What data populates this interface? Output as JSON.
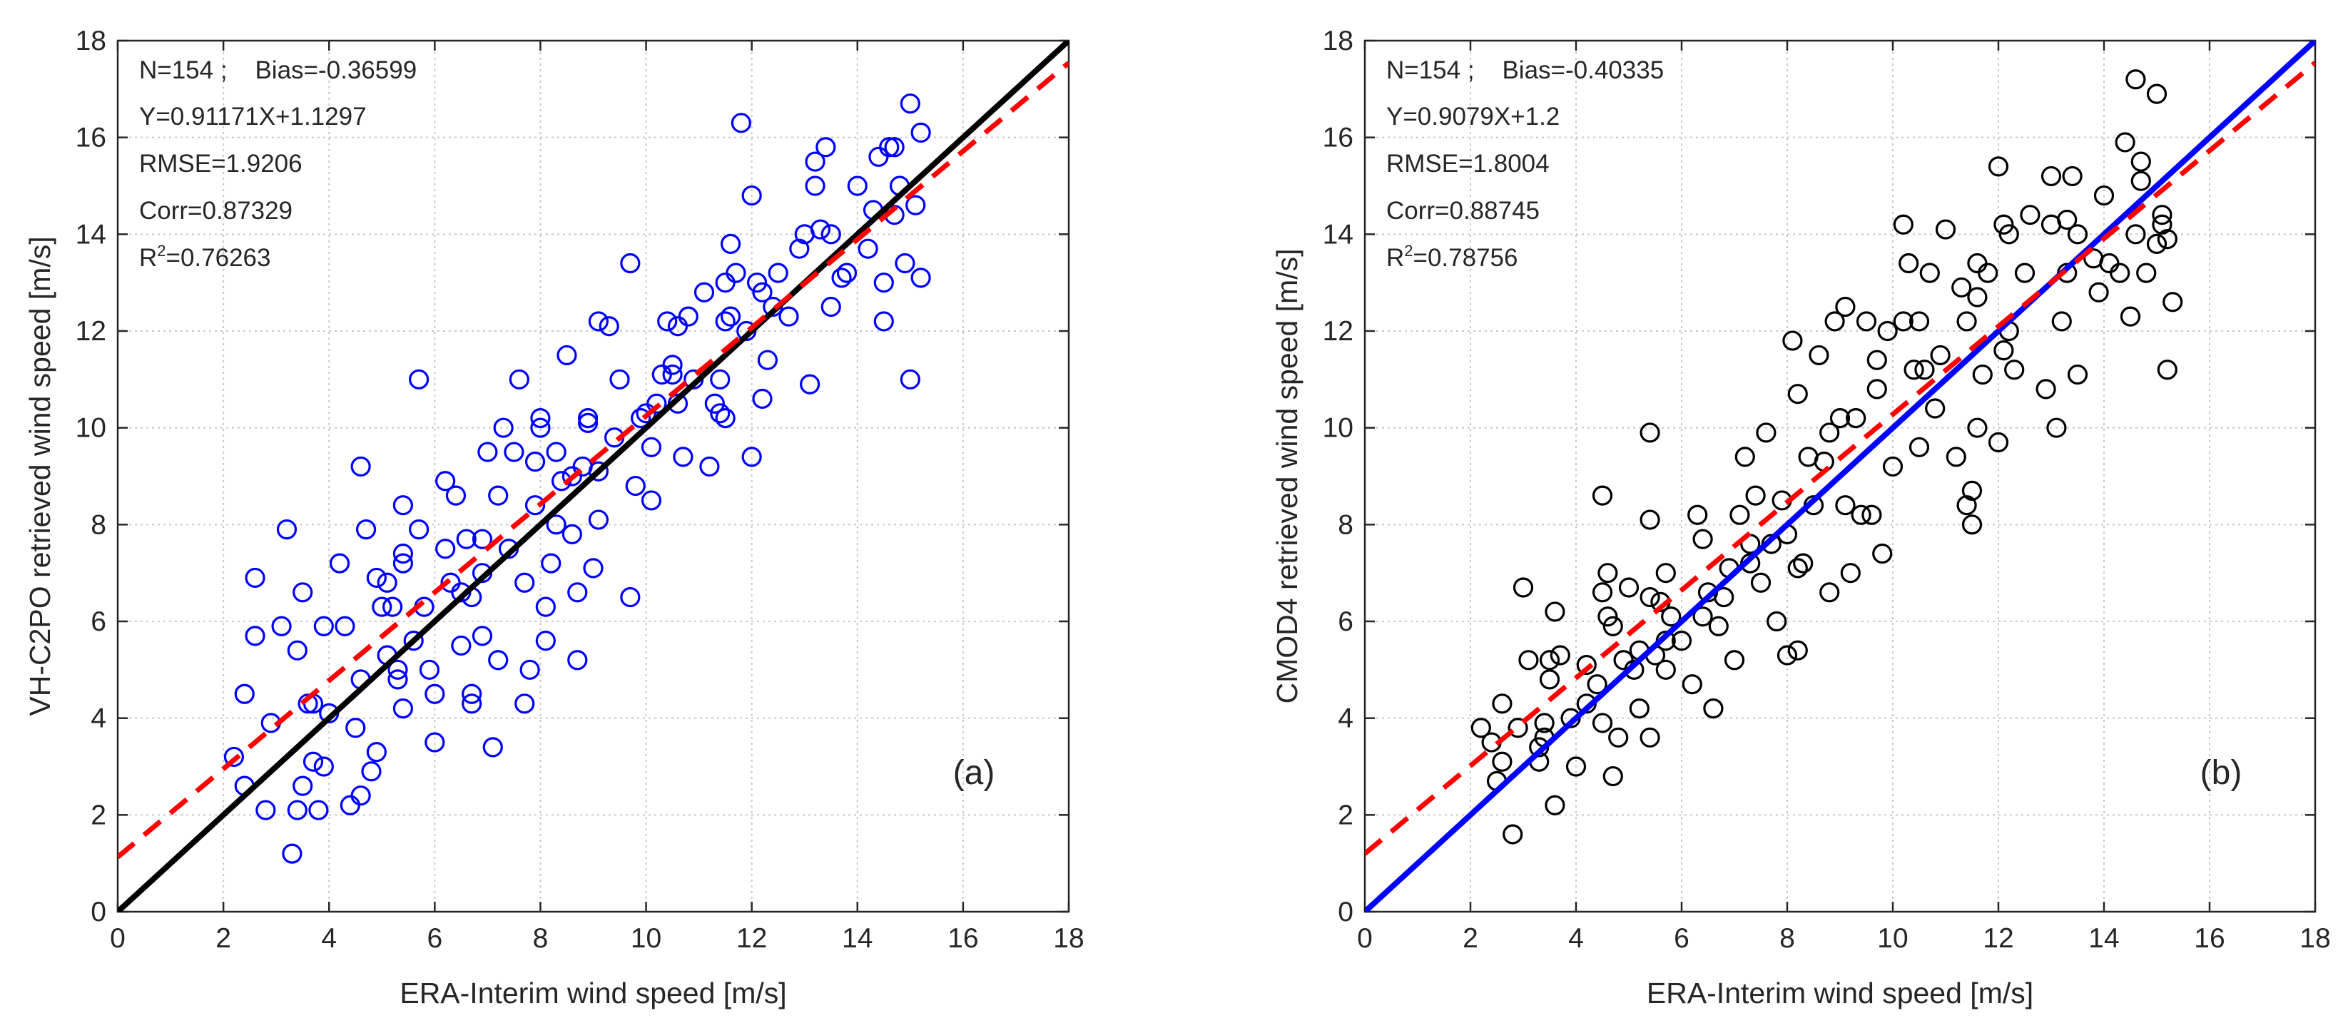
{
  "figure": {
    "panels": [
      {
        "panel_label": "(a)",
        "stats": {
          "n_bias": "N=154 ;    Bias=-0.36599",
          "fit": "Y=0.91171X+1.1297",
          "rmse": "RMSE=1.9206",
          "corr": "Corr=0.87329",
          "r2_base": "R",
          "r2_sup": "2",
          "r2_value": "=0.76263"
        },
        "colors": {
          "marker": "#0000ff",
          "identity_line": "#000000",
          "fit_line": "#ff0000"
        }
      },
      {
        "panel_label": "(b)",
        "stats": {
          "n_bias": "N=154 ;    Bias=-0.40335",
          "fit": "Y=0.9079X+1.2",
          "rmse": "RMSE=1.8004",
          "corr": "Corr=0.88745",
          "r2_base": "R",
          "r2_sup": "2",
          "r2_value": "=0.78756"
        },
        "colors": {
          "marker": "#000000",
          "identity_line": "#0000ff",
          "fit_line": "#ff0000"
        }
      }
    ]
  },
  "chart_data": [
    {
      "type": "scatter",
      "title": "",
      "xlabel": "ERA-Interim wind speed [m/s]",
      "ylabel": "VH-C2PO retrieved wind speed [m/s]",
      "xlim": [
        0,
        18
      ],
      "ylim": [
        0,
        18
      ],
      "xticks": [
        "0",
        "2",
        "4",
        "6",
        "8",
        "10",
        "12",
        "14",
        "16",
        "18"
      ],
      "yticks": [
        "0",
        "2",
        "4",
        "6",
        "8",
        "10",
        "12",
        "14",
        "16",
        "18"
      ],
      "grid": true,
      "identity_line": {
        "slope": 1,
        "intercept": 0,
        "style": "solid"
      },
      "fit_line": {
        "slope": 0.91171,
        "intercept": 1.1297,
        "style": "dashed"
      },
      "points": [
        [
          2.2,
          3.2
        ],
        [
          2.4,
          4.5
        ],
        [
          2.4,
          2.6
        ],
        [
          2.6,
          5.7
        ],
        [
          2.6,
          6.9
        ],
        [
          2.8,
          2.1
        ],
        [
          2.9,
          3.9
        ],
        [
          3.1,
          5.9
        ],
        [
          3.2,
          7.9
        ],
        [
          3.3,
          1.2
        ],
        [
          3.4,
          5.4
        ],
        [
          3.4,
          2.1
        ],
        [
          3.5,
          6.6
        ],
        [
          3.5,
          2.6
        ],
        [
          3.6,
          4.3
        ],
        [
          3.7,
          3.1
        ],
        [
          3.7,
          4.3
        ],
        [
          3.8,
          2.1
        ],
        [
          3.9,
          5.9
        ],
        [
          4.2,
          7.2
        ],
        [
          4.3,
          5.9
        ],
        [
          4.4,
          2.2
        ],
        [
          4.5,
          3.8
        ],
        [
          4.6,
          2.4
        ],
        [
          4.6,
          4.8
        ],
        [
          4.6,
          9.2
        ],
        [
          4.7,
          7.9
        ],
        [
          4.8,
          2.9
        ],
        [
          4.9,
          3.3
        ],
        [
          4.9,
          6.9
        ],
        [
          5.0,
          6.3
        ],
        [
          5.1,
          6.8
        ],
        [
          5.2,
          6.3
        ],
        [
          5.3,
          5.0
        ],
        [
          5.3,
          4.8
        ],
        [
          5.4,
          7.4
        ],
        [
          5.4,
          7.2
        ],
        [
          5.4,
          8.4
        ],
        [
          5.4,
          4.2
        ],
        [
          5.6,
          5.6
        ],
        [
          5.7,
          11.0
        ],
        [
          5.7,
          7.9
        ],
        [
          5.8,
          6.3
        ],
        [
          6.0,
          3.5
        ],
        [
          6.0,
          4.5
        ],
        [
          6.2,
          8.9
        ],
        [
          6.2,
          7.5
        ],
        [
          6.3,
          6.8
        ],
        [
          6.4,
          8.6
        ],
        [
          6.5,
          5.5
        ],
        [
          6.6,
          7.7
        ],
        [
          6.7,
          4.3
        ],
        [
          6.7,
          6.5
        ],
        [
          6.7,
          4.5
        ],
        [
          6.9,
          7.7
        ],
        [
          6.9,
          5.7
        ],
        [
          7.0,
          9.5
        ],
        [
          7.1,
          3.4
        ],
        [
          7.2,
          8.6
        ],
        [
          7.2,
          5.2
        ],
        [
          7.3,
          10.0
        ],
        [
          7.4,
          7.5
        ],
        [
          7.5,
          9.5
        ],
        [
          7.6,
          11.0
        ],
        [
          7.7,
          4.3
        ],
        [
          7.7,
          6.8
        ],
        [
          7.8,
          5.0
        ],
        [
          7.9,
          8.4
        ],
        [
          8.0,
          10.2
        ],
        [
          8.0,
          10.0
        ],
        [
          8.1,
          5.6
        ],
        [
          8.1,
          6.3
        ],
        [
          8.2,
          7.2
        ],
        [
          8.3,
          9.5
        ],
        [
          8.3,
          8.0
        ],
        [
          8.4,
          8.9
        ],
        [
          8.6,
          7.8
        ],
        [
          8.7,
          5.2
        ],
        [
          8.7,
          6.6
        ],
        [
          8.8,
          9.2
        ],
        [
          8.9,
          10.2
        ],
        [
          8.9,
          10.1
        ],
        [
          9.0,
          7.1
        ],
        [
          9.1,
          12.2
        ],
        [
          9.1,
          9.1
        ],
        [
          9.1,
          8.1
        ],
        [
          9.3,
          12.1
        ],
        [
          9.4,
          9.8
        ],
        [
          9.5,
          11.0
        ],
        [
          9.7,
          13.4
        ],
        [
          9.7,
          6.5
        ],
        [
          9.8,
          8.8
        ],
        [
          10.0,
          10.3
        ],
        [
          10.1,
          8.5
        ],
        [
          10.1,
          9.6
        ],
        [
          10.3,
          11.1
        ],
        [
          10.4,
          12.2
        ],
        [
          10.5,
          11.3
        ],
        [
          10.5,
          11.1
        ],
        [
          10.6,
          10.5
        ],
        [
          10.6,
          12.1
        ],
        [
          10.7,
          9.4
        ],
        [
          10.8,
          12.3
        ],
        [
          11.1,
          12.8
        ],
        [
          11.2,
          9.2
        ],
        [
          11.4,
          10.3
        ],
        [
          11.4,
          11.0
        ],
        [
          11.5,
          12.2
        ],
        [
          11.5,
          13.0
        ],
        [
          11.5,
          10.2
        ],
        [
          11.6,
          13.8
        ],
        [
          11.6,
          12.3
        ],
        [
          11.7,
          13.2
        ],
        [
          11.8,
          16.3
        ],
        [
          11.9,
          12.0
        ],
        [
          12.0,
          9.4
        ],
        [
          12.0,
          14.8
        ],
        [
          12.1,
          13.0
        ],
        [
          12.2,
          12.8
        ],
        [
          12.2,
          10.6
        ],
        [
          12.4,
          12.5
        ],
        [
          12.7,
          12.3
        ],
        [
          12.9,
          13.7
        ],
        [
          13.0,
          14.0
        ],
        [
          13.1,
          10.9
        ],
        [
          13.2,
          15.5
        ],
        [
          13.3,
          14.1
        ],
        [
          13.4,
          15.8
        ],
        [
          13.5,
          14.0
        ],
        [
          13.5,
          12.5
        ],
        [
          13.8,
          13.2
        ],
        [
          14.0,
          15.0
        ],
        [
          14.2,
          13.7
        ],
        [
          14.3,
          14.5
        ],
        [
          14.4,
          15.6
        ],
        [
          14.5,
          12.2
        ],
        [
          14.5,
          13.0
        ],
        [
          14.6,
          15.8
        ],
        [
          14.7,
          14.4
        ],
        [
          14.7,
          15.8
        ],
        [
          14.8,
          15.0
        ],
        [
          15.0,
          11.0
        ],
        [
          15.0,
          16.7
        ],
        [
          15.1,
          14.6
        ],
        [
          15.2,
          16.1
        ],
        [
          15.2,
          13.1
        ],
        [
          14.9,
          13.4
        ],
        [
          13.2,
          15.0
        ],
        [
          12.3,
          11.4
        ],
        [
          12.5,
          13.2
        ],
        [
          10.9,
          11.0
        ],
        [
          9.9,
          10.2
        ],
        [
          8.5,
          11.5
        ],
        [
          7.9,
          9.3
        ],
        [
          6.5,
          6.6
        ],
        [
          5.9,
          5.0
        ],
        [
          3.9,
          3.0
        ],
        [
          11.3,
          10.5
        ],
        [
          13.7,
          13.1
        ],
        [
          10.2,
          10.5
        ],
        [
          8.6,
          9.0
        ],
        [
          6.9,
          7.0
        ],
        [
          5.1,
          5.3
        ],
        [
          4.0,
          4.1
        ]
      ]
    },
    {
      "type": "scatter",
      "title": "",
      "xlabel": "ERA-Interim wind speed [m/s]",
      "ylabel": "CMOD4 retrieved wind speed [m/s]",
      "xlim": [
        0,
        18
      ],
      "ylim": [
        0,
        18
      ],
      "xticks": [
        "0",
        "2",
        "4",
        "6",
        "8",
        "10",
        "12",
        "14",
        "16",
        "18"
      ],
      "yticks": [
        "0",
        "2",
        "4",
        "6",
        "8",
        "10",
        "12",
        "14",
        "16",
        "18"
      ],
      "grid": true,
      "identity_line": {
        "slope": 1,
        "intercept": 0,
        "style": "solid"
      },
      "fit_line": {
        "slope": 0.9079,
        "intercept": 1.2,
        "style": "dashed"
      },
      "points": [
        [
          2.2,
          3.8
        ],
        [
          2.4,
          3.5
        ],
        [
          2.5,
          2.7
        ],
        [
          2.6,
          4.3
        ],
        [
          2.6,
          3.1
        ],
        [
          2.8,
          1.6
        ],
        [
          2.9,
          3.8
        ],
        [
          3.0,
          6.7
        ],
        [
          3.1,
          5.2
        ],
        [
          3.3,
          3.1
        ],
        [
          3.4,
          3.9
        ],
        [
          3.4,
          3.6
        ],
        [
          3.5,
          4.8
        ],
        [
          3.5,
          5.2
        ],
        [
          3.6,
          6.2
        ],
        [
          3.6,
          2.2
        ],
        [
          3.7,
          5.3
        ],
        [
          3.9,
          4.0
        ],
        [
          4.0,
          3.0
        ],
        [
          4.2,
          5.1
        ],
        [
          4.4,
          4.7
        ],
        [
          4.5,
          3.9
        ],
        [
          4.5,
          6.6
        ],
        [
          4.5,
          8.6
        ],
        [
          4.6,
          7.0
        ],
        [
          4.6,
          6.1
        ],
        [
          4.7,
          2.8
        ],
        [
          4.7,
          5.9
        ],
        [
          4.8,
          3.6
        ],
        [
          4.9,
          5.2
        ],
        [
          5.0,
          6.7
        ],
        [
          5.2,
          4.2
        ],
        [
          5.2,
          5.4
        ],
        [
          5.4,
          9.9
        ],
        [
          5.4,
          8.1
        ],
        [
          5.4,
          6.5
        ],
        [
          5.4,
          3.6
        ],
        [
          5.5,
          5.3
        ],
        [
          5.6,
          6.4
        ],
        [
          5.7,
          7.0
        ],
        [
          5.7,
          5.6
        ],
        [
          5.8,
          6.1
        ],
        [
          6.0,
          5.6
        ],
        [
          6.2,
          4.7
        ],
        [
          6.3,
          8.2
        ],
        [
          6.4,
          7.7
        ],
        [
          6.5,
          6.6
        ],
        [
          6.6,
          4.2
        ],
        [
          6.7,
          5.9
        ],
        [
          6.9,
          7.1
        ],
        [
          7.0,
          5.2
        ],
        [
          7.1,
          8.2
        ],
        [
          7.2,
          9.4
        ],
        [
          7.3,
          7.2
        ],
        [
          7.4,
          8.6
        ],
        [
          7.5,
          6.8
        ],
        [
          7.6,
          9.9
        ],
        [
          7.7,
          7.6
        ],
        [
          7.8,
          6.0
        ],
        [
          7.9,
          8.5
        ],
        [
          8.0,
          7.8
        ],
        [
          8.0,
          5.3
        ],
        [
          8.1,
          11.8
        ],
        [
          8.2,
          5.4
        ],
        [
          8.2,
          7.1
        ],
        [
          8.2,
          10.7
        ],
        [
          8.3,
          7.2
        ],
        [
          8.4,
          9.4
        ],
        [
          8.6,
          11.5
        ],
        [
          8.8,
          6.6
        ],
        [
          8.8,
          9.9
        ],
        [
          8.9,
          12.2
        ],
        [
          9.0,
          10.2
        ],
        [
          9.1,
          8.4
        ],
        [
          9.1,
          12.5
        ],
        [
          9.2,
          7.0
        ],
        [
          9.3,
          10.2
        ],
        [
          9.5,
          12.2
        ],
        [
          9.6,
          8.2
        ],
        [
          9.7,
          11.4
        ],
        [
          9.7,
          10.8
        ],
        [
          9.8,
          7.4
        ],
        [
          9.9,
          12.0
        ],
        [
          10.0,
          9.2
        ],
        [
          10.2,
          12.2
        ],
        [
          10.2,
          14.2
        ],
        [
          10.3,
          13.4
        ],
        [
          10.4,
          11.2
        ],
        [
          10.5,
          12.2
        ],
        [
          10.7,
          13.2
        ],
        [
          10.8,
          10.4
        ],
        [
          10.9,
          11.5
        ],
        [
          11.0,
          14.1
        ],
        [
          11.2,
          9.4
        ],
        [
          11.3,
          12.9
        ],
        [
          11.4,
          12.2
        ],
        [
          11.4,
          8.4
        ],
        [
          11.5,
          8.0
        ],
        [
          11.5,
          8.7
        ],
        [
          11.6,
          13.4
        ],
        [
          11.6,
          12.7
        ],
        [
          11.7,
          11.1
        ],
        [
          11.8,
          13.2
        ],
        [
          12.0,
          9.7
        ],
        [
          12.0,
          15.4
        ],
        [
          12.1,
          14.2
        ],
        [
          12.2,
          14.0
        ],
        [
          12.2,
          12.0
        ],
        [
          12.3,
          11.2
        ],
        [
          12.5,
          13.2
        ],
        [
          12.6,
          14.4
        ],
        [
          12.9,
          10.8
        ],
        [
          13.0,
          14.2
        ],
        [
          13.0,
          15.2
        ],
        [
          13.1,
          10.0
        ],
        [
          13.2,
          12.2
        ],
        [
          13.3,
          13.2
        ],
        [
          13.3,
          14.3
        ],
        [
          13.4,
          15.2
        ],
        [
          13.5,
          14.0
        ],
        [
          13.5,
          11.1
        ],
        [
          13.9,
          12.8
        ],
        [
          14.0,
          14.8
        ],
        [
          14.1,
          13.4
        ],
        [
          14.3,
          13.2
        ],
        [
          14.4,
          15.9
        ],
        [
          14.5,
          12.3
        ],
        [
          14.6,
          14.0
        ],
        [
          14.6,
          17.2
        ],
        [
          14.7,
          15.5
        ],
        [
          14.7,
          15.1
        ],
        [
          14.8,
          13.2
        ],
        [
          15.0,
          16.9
        ],
        [
          15.0,
          13.8
        ],
        [
          15.1,
          14.4
        ],
        [
          15.1,
          14.2
        ],
        [
          15.2,
          11.2
        ],
        [
          15.2,
          13.9
        ],
        [
          15.3,
          12.6
        ],
        [
          11.6,
          10.0
        ],
        [
          10.6,
          11.2
        ],
        [
          9.4,
          8.2
        ],
        [
          8.7,
          9.3
        ],
        [
          7.3,
          7.6
        ],
        [
          6.4,
          6.1
        ],
        [
          5.7,
          5.0
        ],
        [
          4.2,
          4.3
        ],
        [
          3.3,
          3.4
        ],
        [
          12.1,
          11.6
        ],
        [
          13.8,
          13.5
        ],
        [
          10.5,
          9.6
        ],
        [
          8.5,
          8.4
        ],
        [
          6.8,
          6.5
        ],
        [
          5.1,
          5.0
        ]
      ]
    }
  ]
}
